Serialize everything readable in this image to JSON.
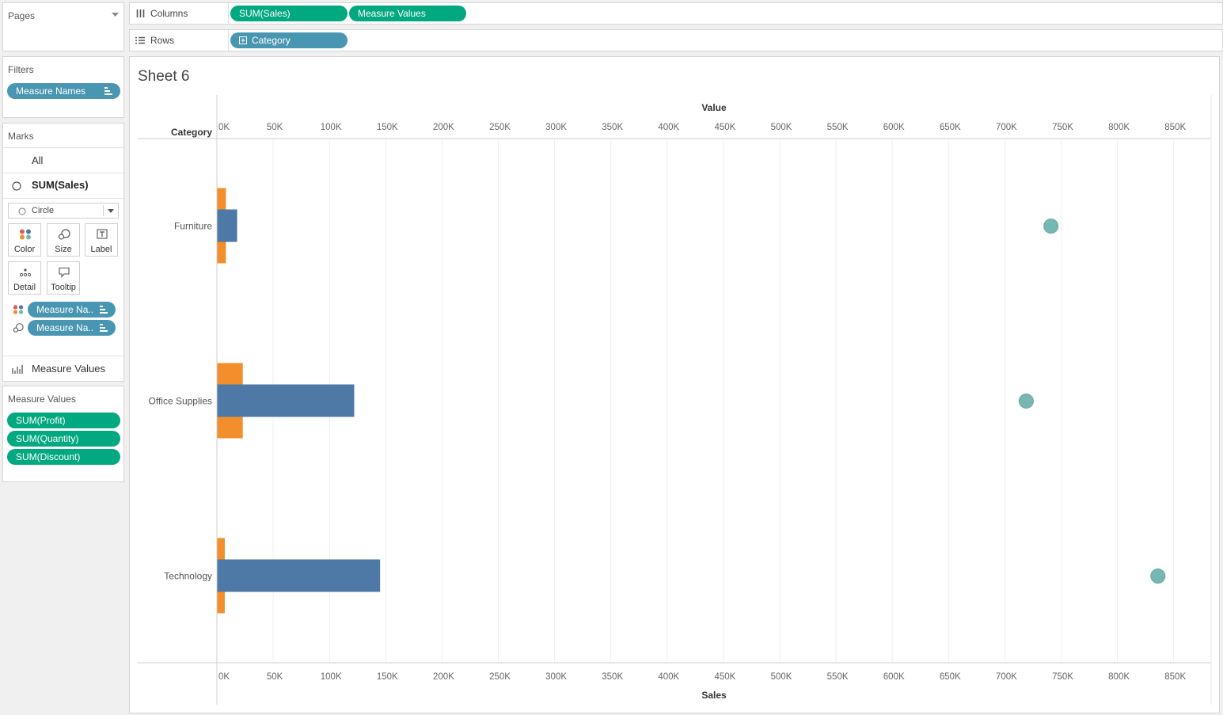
{
  "pages": {
    "title": "Pages"
  },
  "filters": {
    "title": "Filters",
    "pill": "Measure Names"
  },
  "marks": {
    "title": "Marks",
    "all_label": "All",
    "layer_label": "SUM(Sales)",
    "mark_type": "Circle",
    "buttons": {
      "color": "Color",
      "size": "Size",
      "label": "Label",
      "detail": "Detail",
      "tooltip": "Tooltip"
    },
    "encodings": [
      "Measure Na..",
      "Measure Na.."
    ],
    "measure_values_label": "Measure Values"
  },
  "measure_values": {
    "title": "Measure Values",
    "pills": [
      "SUM(Profit)",
      "SUM(Quantity)",
      "SUM(Discount)"
    ]
  },
  "shelves": {
    "columns_label": "Columns",
    "columns_pills": [
      "SUM(Sales)",
      "Measure Values"
    ],
    "rows_label": "Rows",
    "rows_pills": [
      "Category"
    ]
  },
  "sheet": {
    "title": "Sheet 6"
  },
  "chart_data": {
    "type": "bar",
    "row_header": "Category",
    "top_axis_title": "Value",
    "bottom_axis_title": "Sales",
    "ticks": [
      "0K",
      "50K",
      "100K",
      "150K",
      "200K",
      "250K",
      "300K",
      "350K",
      "400K",
      "450K",
      "500K",
      "550K",
      "600K",
      "650K",
      "700K",
      "750K",
      "800K",
      "850K"
    ],
    "xlim": [
      0,
      880000
    ],
    "categories": [
      "Furniture",
      "Office Supplies",
      "Technology"
    ],
    "value_bars": {
      "profit": [
        18000,
        122000,
        145000
      ],
      "quantity": [
        8000,
        23000,
        7000
      ]
    },
    "sales_points": [
      741000,
      719000,
      836000
    ],
    "colors": {
      "profit": "#4e79a7",
      "quantity": "#f28e2b",
      "sales": "#76b7b2"
    }
  }
}
